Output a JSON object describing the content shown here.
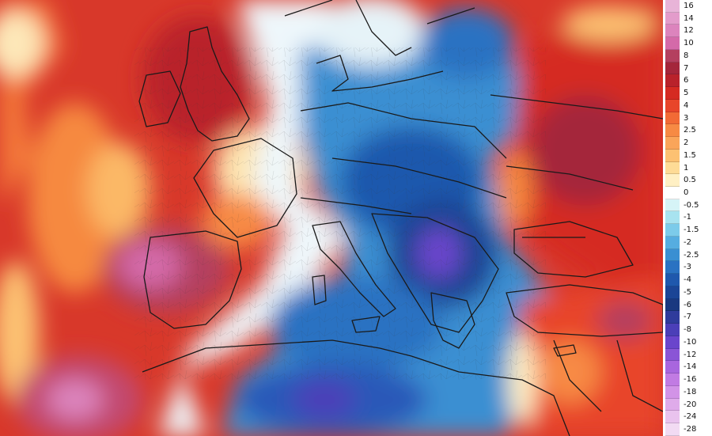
{
  "legend": {
    "steps": [
      {
        "label": "16",
        "color": "#e8b4d8"
      },
      {
        "label": "14",
        "color": "#e39ccb"
      },
      {
        "label": "12",
        "color": "#dc84bd"
      },
      {
        "label": "10",
        "color": "#d46aa9"
      },
      {
        "label": "8",
        "color": "#b4405f"
      },
      {
        "label": "7",
        "color": "#a4263b"
      },
      {
        "label": "6",
        "color": "#b9222b"
      },
      {
        "label": "5",
        "color": "#d52a22"
      },
      {
        "label": "4",
        "color": "#e8452a"
      },
      {
        "label": "3",
        "color": "#f26a35"
      },
      {
        "label": "2.5",
        "color": "#f78a44"
      },
      {
        "label": "2",
        "color": "#faa55a"
      },
      {
        "label": "1.5",
        "color": "#fcc172"
      },
      {
        "label": "1",
        "color": "#fedb96"
      },
      {
        "label": "0.5",
        "color": "#fff0c4"
      },
      {
        "label": "0",
        "color": "#ffffff"
      },
      {
        "label": "-0.5",
        "color": "#d6f4f7"
      },
      {
        "label": "-1",
        "color": "#a8e3f0"
      },
      {
        "label": "-1.5",
        "color": "#7ccbea"
      },
      {
        "label": "-2",
        "color": "#56ade0"
      },
      {
        "label": "-2.5",
        "color": "#3a8fd2"
      },
      {
        "label": "-3",
        "color": "#2a72c2"
      },
      {
        "label": "-4",
        "color": "#1f58ad"
      },
      {
        "label": "-5",
        "color": "#1b4596"
      },
      {
        "label": "-6",
        "color": "#1a3880"
      },
      {
        "label": "-7",
        "color": "#2f3c9c"
      },
      {
        "label": "-8",
        "color": "#4b3fb8"
      },
      {
        "label": "-10",
        "color": "#6a45cc"
      },
      {
        "label": "-12",
        "color": "#8a55d6"
      },
      {
        "label": "-14",
        "color": "#a866de"
      },
      {
        "label": "-16",
        "color": "#c17be3"
      },
      {
        "label": "-18",
        "color": "#d293e7"
      },
      {
        "label": "-20",
        "color": "#dfabea"
      },
      {
        "label": "-24",
        "color": "#e9c3ee"
      },
      {
        "label": "-28",
        "color": "#f2dbf3"
      }
    ]
  },
  "map": {
    "colors": {
      "ocean_warm": "#d8382a",
      "border_line": "#1a1a1a",
      "admin_line": "#555555"
    },
    "regions": [
      "warm-atlantic",
      "hot-iberia",
      "hot-north-africa-west",
      "warm-british-isles",
      "neutral-france",
      "cold-central-europe",
      "very-cold-balkans",
      "cold-italy-mediterranean",
      "cold-north-africa",
      "warm-eastern-europe",
      "hot-middle-east",
      "neutral-scandinavia"
    ]
  }
}
